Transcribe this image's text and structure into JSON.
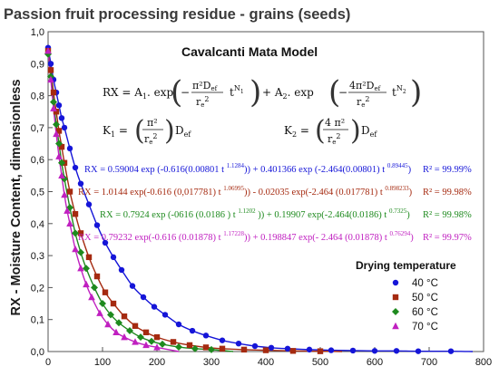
{
  "chart_data": {
    "type": "scatter",
    "title": "Passion fruit processing residue - grains (seeds)",
    "ylabel": "RX - Moisture Content, dimensionless",
    "xlabel": "",
    "xlim": [
      0,
      800
    ],
    "ylim": [
      0,
      1.0
    ],
    "x_ticks": [
      "0",
      "100",
      "200",
      "300",
      "400",
      "500",
      "600",
      "700",
      "800"
    ],
    "y_ticks": [
      "0,0",
      "0,1",
      "0,2",
      "0,3",
      "0,4",
      "0,5",
      "0,6",
      "0,7",
      "0,8",
      "0,9",
      "1,0"
    ],
    "grid": false,
    "legend_title": "Drying temperature",
    "legend_position": "bottom-right",
    "model": {
      "name": "Cavalcanti Mata Model",
      "equation": "RX = A1.exp(−π²Def/re² t^N1) + A2.exp(−4π²Def/re² t^N2)",
      "k1": "K1 = (π²/re²) Def",
      "k2": "K2 = (4π²/re²) Def"
    },
    "series": [
      {
        "name": "40 °C",
        "color": "#1515d8",
        "marker": "circle",
        "fit": "RX = 0.59004 exp (-0.616(0.00801 t^1.1284)) + 0.401366 exp (-2.464(0.00801) t^0.89445)",
        "r2": "R² = 99.99%",
        "fit_parts": [
          "RX = 0.59004 exp (-0.616(0.00801 t ",
          "1.1284",
          ")) + 0.401366 exp (-2.464(0.00801) t ",
          "0.89445",
          ")"
        ],
        "r2_text": "R² = 99.99%",
        "x": [
          0,
          5,
          10,
          15,
          20,
          25,
          30,
          40,
          50,
          60,
          75,
          90,
          105,
          120,
          135,
          155,
          175,
          195,
          215,
          240,
          265,
          290,
          320,
          350,
          380,
          410,
          440,
          480,
          520,
          560,
          600,
          640,
          680,
          740
        ],
        "y": [
          0.95,
          0.9,
          0.85,
          0.81,
          0.77,
          0.73,
          0.7,
          0.635,
          0.575,
          0.525,
          0.46,
          0.395,
          0.34,
          0.295,
          0.255,
          0.205,
          0.17,
          0.14,
          0.115,
          0.085,
          0.065,
          0.05,
          0.035,
          0.025,
          0.017,
          0.012,
          0.009,
          0.006,
          0.004,
          0.003,
          0.002,
          0.002,
          0.001,
          0.001
        ]
      },
      {
        "name": "50 °C",
        "color": "#a52a10",
        "marker": "square",
        "fit": "RX = 1.0144 exp(-0.616 (0,017781) t^1.06995)) - 0.02035 exp(-2.464 (0.017781) t^0.898233)",
        "r2": "R² = 99.98%",
        "fit_parts": [
          "RX = 1.0144 exp(-0.616 (0,017781) t ",
          "1.06995",
          ")) - 0.02035 exp(-2.464 (0.017781) t ",
          "0.898233",
          ")"
        ],
        "r2_text": "R² = 99.98%",
        "x": [
          0,
          5,
          10,
          15,
          20,
          25,
          30,
          40,
          50,
          60,
          75,
          90,
          105,
          120,
          140,
          160,
          180,
          200,
          230,
          260,
          290,
          320,
          360,
          400,
          450,
          500
        ],
        "y": [
          0.94,
          0.88,
          0.81,
          0.75,
          0.69,
          0.64,
          0.59,
          0.5,
          0.43,
          0.37,
          0.295,
          0.235,
          0.185,
          0.15,
          0.11,
          0.08,
          0.06,
          0.045,
          0.03,
          0.02,
          0.013,
          0.009,
          0.006,
          0.004,
          0.002,
          0.001
        ]
      },
      {
        "name": "60 °C",
        "color": "#1e8a1e",
        "marker": "diamond",
        "fit": "RX = 0.7924 exp (-0616 (0.0186 ) t^1.1202 )) + 0.19907 exp(-2.464(0.0186) t^0.7325)",
        "r2": "R² = 99.98%",
        "fit_parts": [
          "RX = 0.7924 exp (-0616 (0.0186 ) t ",
          "1.1202",
          " )) + 0.19907 exp(-2.464(0.0186) t ",
          "0.7325",
          ")"
        ],
        "r2_text": "R² = 99.98%",
        "x": [
          0,
          5,
          10,
          15,
          20,
          25,
          30,
          40,
          50,
          60,
          70,
          85,
          100,
          115,
          130,
          150,
          170,
          190,
          210,
          240,
          270,
          300
        ],
        "y": [
          0.93,
          0.86,
          0.78,
          0.71,
          0.65,
          0.59,
          0.54,
          0.45,
          0.37,
          0.31,
          0.26,
          0.2,
          0.15,
          0.115,
          0.09,
          0.065,
          0.045,
          0.032,
          0.023,
          0.014,
          0.009,
          0.006
        ]
      },
      {
        "name": "70 °C",
        "color": "#c020c0",
        "marker": "triangle",
        "fit": "RX = 0.79232 exp(-0.616 (0.01878) t^1.17228)) + 0.198847 exp(- 2.464 (0.01878) t^0.76294)",
        "r2": "R² = 99.97%",
        "fit_parts": [
          "RX = 0.79232 exp(-0.616 (0.01878) t ",
          "1.17228",
          ")) + 0.198847 exp(- 2.464 (0.01878) t ",
          "0.76294",
          ")"
        ],
        "r2_text": "R² = 99.97%",
        "x": [
          0,
          5,
          10,
          15,
          20,
          25,
          30,
          35,
          40,
          50,
          60,
          70,
          80,
          95,
          110,
          125,
          140,
          160,
          180,
          200
        ],
        "y": [
          0.94,
          0.85,
          0.76,
          0.68,
          0.61,
          0.55,
          0.49,
          0.44,
          0.4,
          0.32,
          0.26,
          0.21,
          0.17,
          0.12,
          0.085,
          0.06,
          0.045,
          0.03,
          0.02,
          0.013
        ]
      }
    ]
  }
}
